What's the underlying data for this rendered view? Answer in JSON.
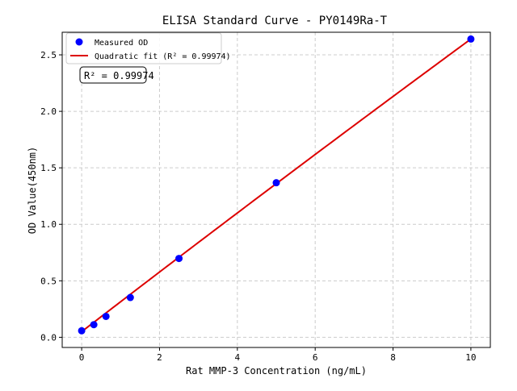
{
  "chart_data": {
    "type": "scatter",
    "title": "ELISA Standard Curve - PY0149Ra-T",
    "xlabel": "Rat MMP-3 Concentration (ng/mL)",
    "ylabel": "OD Value(450nm)",
    "xlim": [
      -0.5,
      10.5
    ],
    "ylim": [
      -0.09,
      2.7
    ],
    "xticks": [
      0,
      2,
      4,
      6,
      8,
      10
    ],
    "yticks": [
      0.0,
      0.5,
      1.0,
      1.5,
      2.0,
      2.5
    ],
    "xtick_labels": [
      "0",
      "2",
      "4",
      "6",
      "8",
      "10"
    ],
    "ytick_labels": [
      "0.0",
      "0.5",
      "1.0",
      "1.5",
      "2.0",
      "2.5"
    ],
    "grid": true,
    "legend_position": "top-left",
    "series": [
      {
        "name": "Measured OD",
        "kind": "scatter",
        "color": "#0000ff",
        "x": [
          0,
          0.3125,
          0.625,
          1.25,
          2.5,
          5,
          10
        ],
        "y": [
          0.058,
          0.112,
          0.185,
          0.352,
          0.698,
          1.368,
          2.64
        ]
      },
      {
        "name": "Quadratic fit (R² = 0.99974)",
        "kind": "line",
        "color": "#dd0000",
        "coefficients": {
          "a": 0.05,
          "b": 0.265,
          "c": -0.0006
        }
      }
    ],
    "annotation": "R² = 0.99974"
  }
}
